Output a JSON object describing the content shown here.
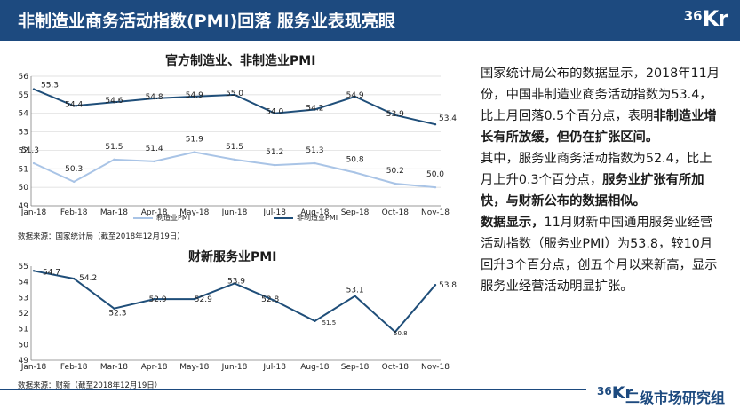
{
  "header": {
    "title": "非制造业商务活动指数(PMI)回落 服务业表现亮眼",
    "logo_num": "36",
    "logo_kr": "Kr"
  },
  "charts": {
    "chart1_source": "数据来源：国家统计局（截至2018年12月19日）",
    "chart2_source": "数据来源：财新（截至2018年12月19日）"
  },
  "chart_data": [
    {
      "type": "line",
      "title": "官方制造业、非制造业PMI",
      "categories": [
        "Jan-18",
        "Feb-18",
        "Mar-18",
        "Apr-18",
        "May-18",
        "Jun-18",
        "Jul-18",
        "Aug-18",
        "Sep-18",
        "Oct-18",
        "Nov-18"
      ],
      "ylim": [
        49,
        56
      ],
      "yticks": [
        49,
        50,
        51,
        52,
        53,
        54,
        55,
        56
      ],
      "grid": true,
      "legend_position": "bottom",
      "series": [
        {
          "name": "制造业PMI",
          "color": "#a9c4e6",
          "values": [
            51.3,
            50.3,
            51.5,
            51.4,
            51.9,
            51.5,
            51.2,
            51.3,
            50.8,
            50.2,
            50.0
          ],
          "labels": [
            "51.3",
            "50.3",
            "51.5",
            "51.4",
            "51.9",
            "51.5",
            "51.2",
            "51.3",
            "50.8",
            "50.2",
            "50.0"
          ]
        },
        {
          "name": "非制造业PMI",
          "color": "#1f4e79",
          "values": [
            55.3,
            54.4,
            54.6,
            54.8,
            54.9,
            55.0,
            54.0,
            54.2,
            54.9,
            53.9,
            53.4
          ],
          "labels": [
            "55.3",
            "54.4",
            "54.6",
            "54.8",
            "54.9",
            "55.0",
            "54.0",
            "54.2",
            "54.9",
            "53.9",
            "53.4"
          ]
        }
      ]
    },
    {
      "type": "line",
      "title": "财新服务业PMI",
      "categories": [
        "Jan-18",
        "Feb-18",
        "Mar-18",
        "Apr-18",
        "May-18",
        "Jun-18",
        "Jul-18",
        "Aug-18",
        "Sep-18",
        "Oct-18",
        "Nov-18"
      ],
      "ylim": [
        49,
        55
      ],
      "yticks": [
        49,
        50,
        51,
        52,
        53,
        54,
        55
      ],
      "grid": false,
      "series": [
        {
          "color": "#1f4e79",
          "values": [
            54.7,
            54.2,
            52.3,
            52.9,
            52.9,
            53.9,
            52.8,
            51.5,
            53.1,
            50.8,
            53.8
          ],
          "labels": [
            "54.7",
            "54.2",
            "52.3",
            "52.9",
            "52.9",
            "53.9",
            "52.8",
            "51.5",
            "53.1",
            "50.8",
            "53.8"
          ]
        }
      ]
    }
  ],
  "right_text": {
    "p1_a": "国家统计局公布的数据显示，2018年11月份，中国非制造业商务活动指数为53.4，比上月回落0.5个百分点，表明",
    "p1_b": "非制造业增长有所放缓，但仍在扩张区间。",
    "p2_a": "其中，服务业商务活动指数为52.4，比上月上升0.3个百分点，",
    "p2_b": "服务业扩张有所加快，与财新公布的数据相似。",
    "p3_a": "数据显示，",
    "p3_b": "11月财新中国通用服务业经营活动指数（服务业PMI）为53.8，较10月回升3个百分点，创五个月以来新高，显示服务业经营活动明显扩张。"
  },
  "footer": {
    "logo_num": "36",
    "logo_kr": "Kr",
    "text": "二级市场研究组"
  },
  "colors": {
    "brand": "#1d4a7f",
    "series_dark": "#1f4e79",
    "series_light": "#a9c4e6"
  }
}
